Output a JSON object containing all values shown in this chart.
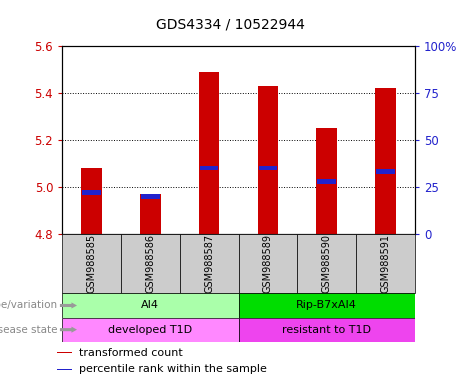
{
  "title": "GDS4334 / 10522944",
  "samples": [
    "GSM988585",
    "GSM988586",
    "GSM988587",
    "GSM988589",
    "GSM988590",
    "GSM988591"
  ],
  "transformed_counts": [
    5.08,
    4.97,
    5.49,
    5.43,
    5.25,
    5.42
  ],
  "percentile_ranks": [
    22,
    20,
    35,
    35,
    28,
    33
  ],
  "ylim_left": [
    4.8,
    5.6
  ],
  "ylim_right": [
    0,
    100
  ],
  "yticks_left": [
    4.8,
    5.0,
    5.2,
    5.4,
    5.6
  ],
  "yticks_right": [
    0,
    25,
    50,
    75,
    100
  ],
  "bar_bottom": 4.8,
  "bar_color": "#cc0000",
  "percentile_color": "#2222cc",
  "genotype_groups": [
    {
      "label": "AI4",
      "samples": [
        0,
        1,
        2
      ],
      "color": "#aaffaa"
    },
    {
      "label": "Rip-B7xAI4",
      "samples": [
        3,
        4,
        5
      ],
      "color": "#00dd00"
    }
  ],
  "disease_groups": [
    {
      "label": "developed T1D",
      "samples": [
        0,
        1,
        2
      ],
      "color": "#ff88ff"
    },
    {
      "label": "resistant to T1D",
      "samples": [
        3,
        4,
        5
      ],
      "color": "#ee44ee"
    }
  ],
  "legend_items": [
    {
      "label": "transformed count",
      "color": "#cc0000"
    },
    {
      "label": "percentile rank within the sample",
      "color": "#2222cc"
    }
  ],
  "left_axis_color": "#cc0000",
  "right_axis_color": "#2222cc",
  "bar_width": 0.35,
  "sample_box_color": "#cccccc",
  "row_label_color": "#888888",
  "arrow_color": "#999999"
}
